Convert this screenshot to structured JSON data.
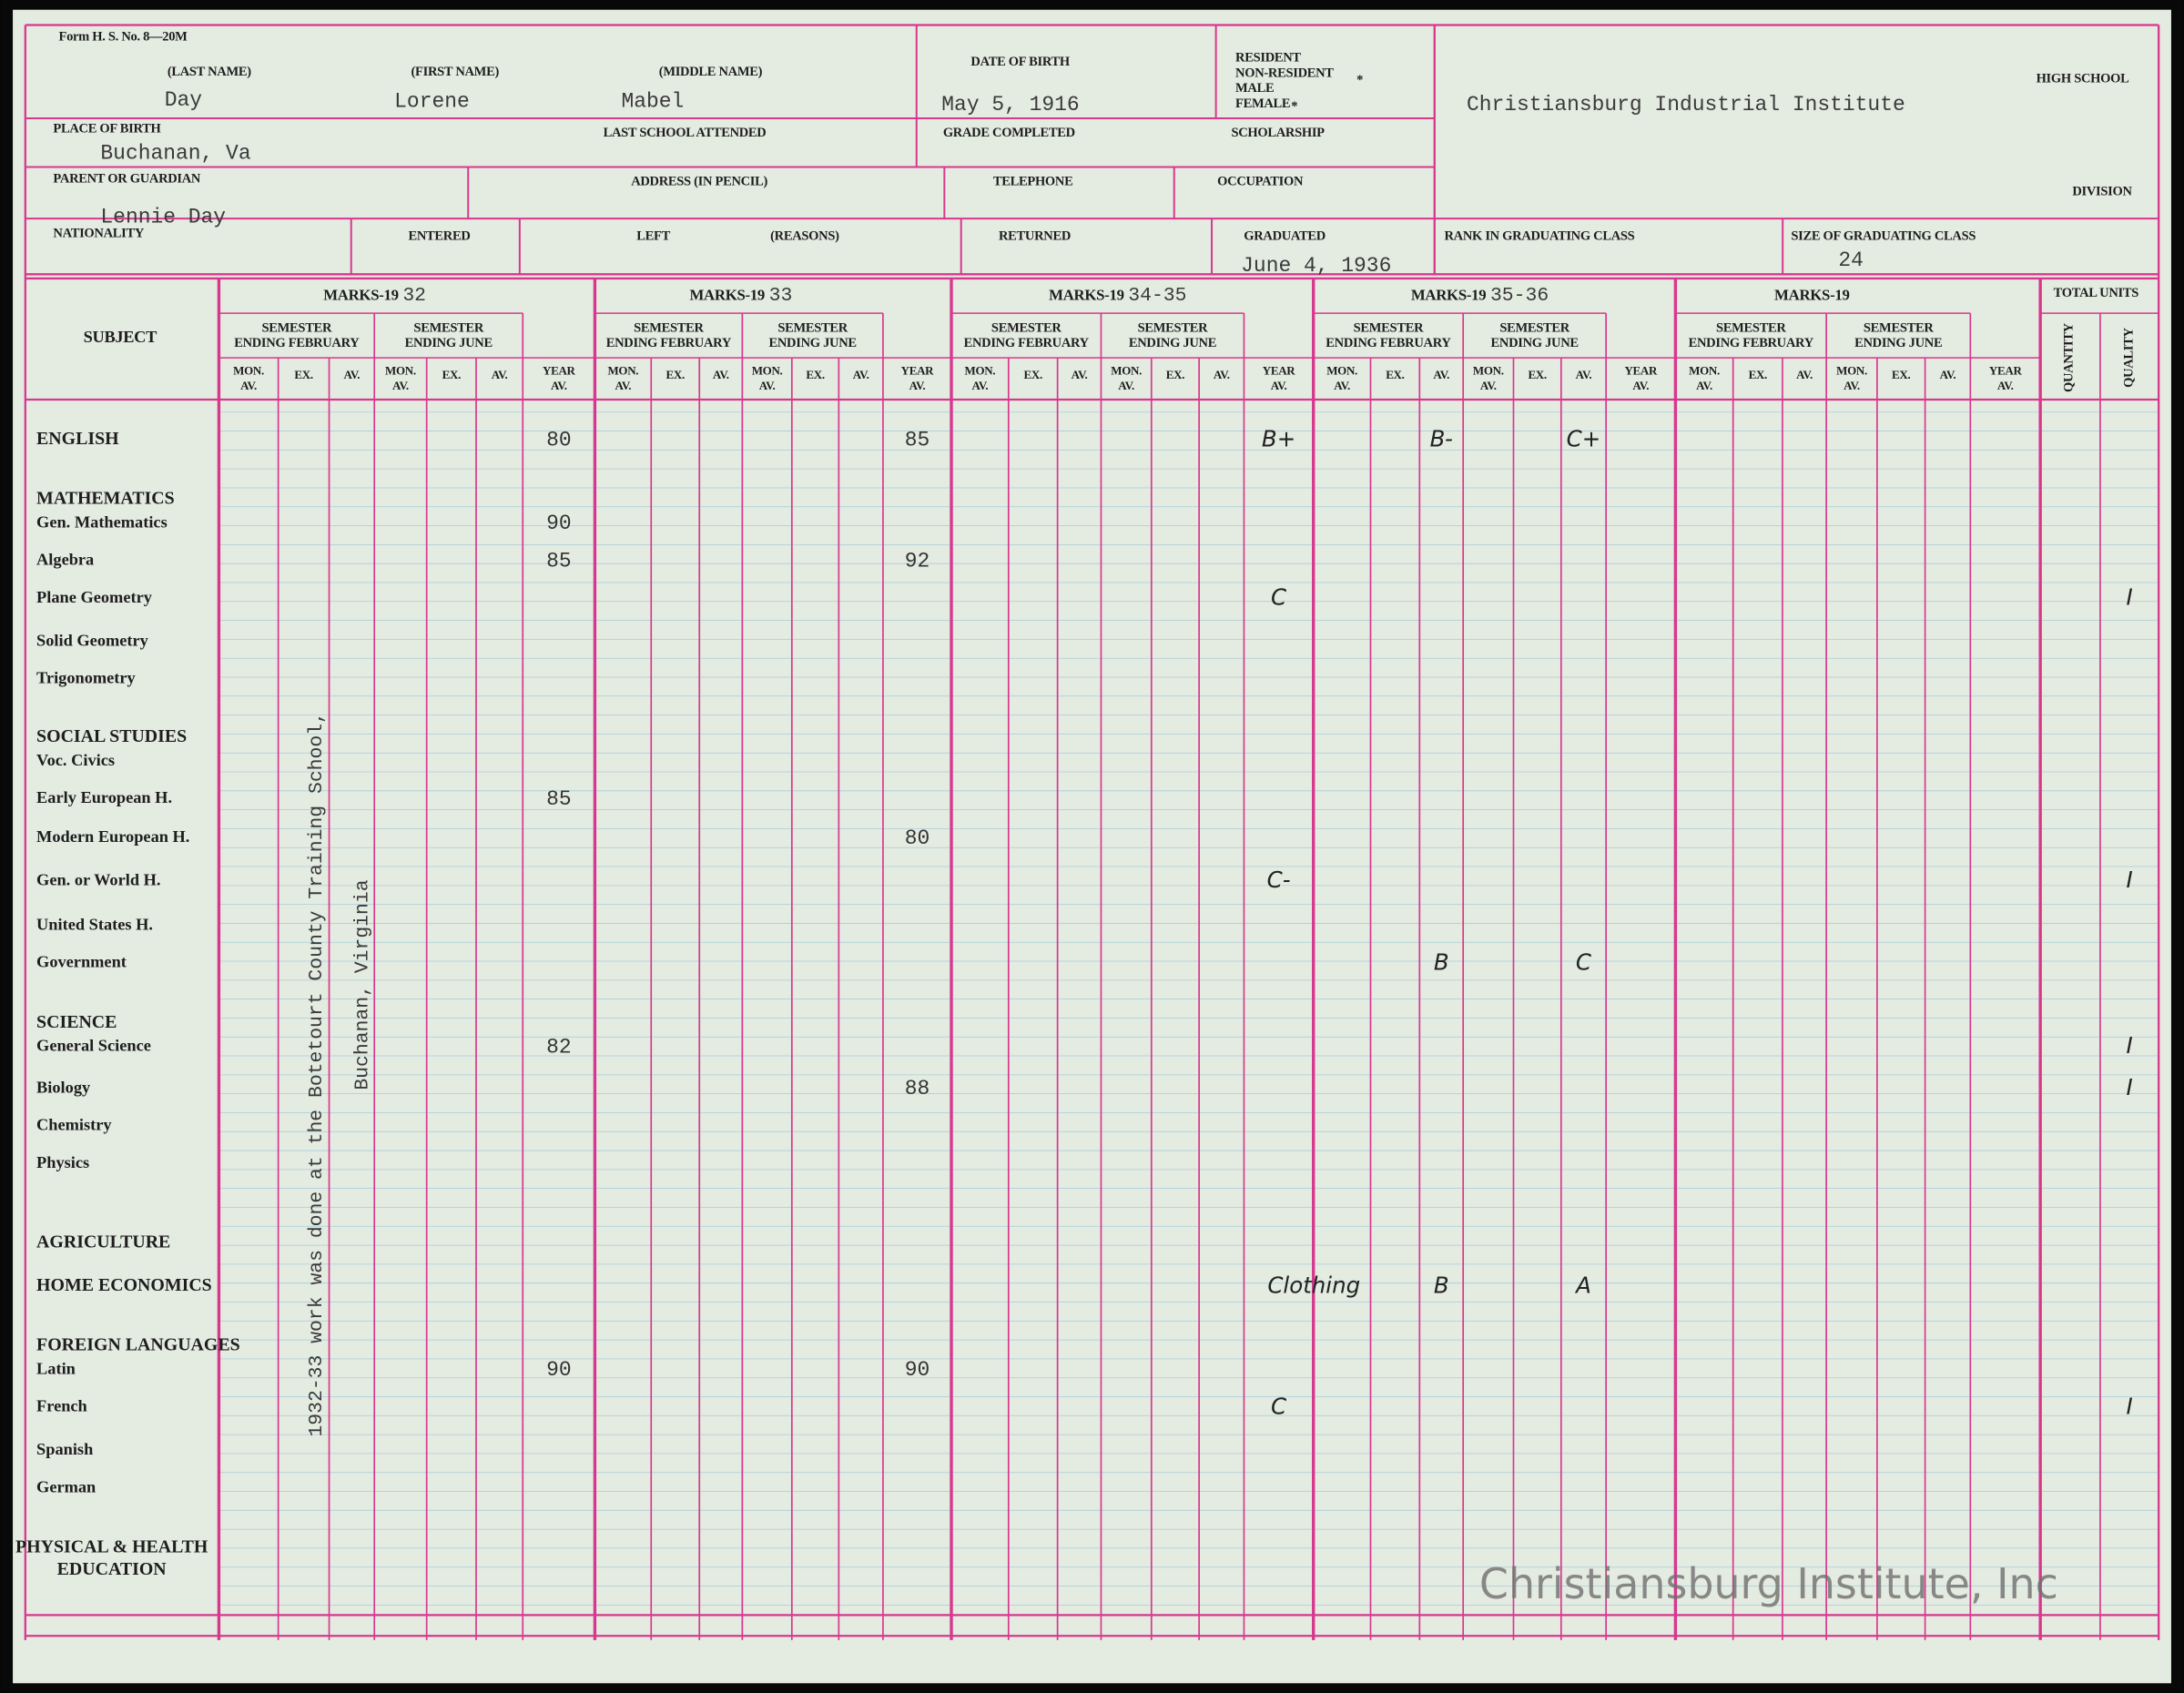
{
  "header": {
    "form_number": "Form H. S. No. 8—20M",
    "last_name": {
      "label": "(LAST NAME)",
      "value": "Day"
    },
    "first_name": {
      "label": "(FIRST NAME)",
      "value": "Lorene"
    },
    "middle_name": {
      "label": "(MIDDLE NAME)",
      "value": "Mabel"
    },
    "date_of_birth": {
      "label": "DATE OF BIRTH",
      "value": "May 5, 1916"
    },
    "status": [
      "RESIDENT",
      "NON-RESIDENT",
      "MALE",
      "FEMALE"
    ],
    "status_marks": [
      "*",
      "*"
    ],
    "high_school": {
      "label": "HIGH SCHOOL",
      "value": "Christiansburg Industrial Institute"
    },
    "place_of_birth": {
      "label": "PLACE OF BIRTH",
      "value": "Buchanan, Va"
    },
    "last_school": {
      "label": "LAST SCHOOL ATTENDED"
    },
    "grade_completed": {
      "label": "GRADE COMPLETED"
    },
    "scholarship": {
      "label": "SCHOLARSHIP"
    },
    "parent": {
      "label": "PARENT OR GUARDIAN",
      "value": "Lennie Day"
    },
    "address": {
      "label": "ADDRESS (IN PENCIL)"
    },
    "telephone": {
      "label": "TELEPHONE"
    },
    "occupation": {
      "label": "OCCUPATION"
    },
    "division": {
      "label": "DIVISION"
    },
    "nationality": {
      "label": "NATIONALITY"
    },
    "entered": {
      "label": "ENTERED"
    },
    "left": {
      "label": "LEFT"
    },
    "reasons": {
      "label": "(REASONS)"
    },
    "returned": {
      "label": "RETURNED"
    },
    "graduated": {
      "label": "GRADUATED",
      "value": "June 4, 1936"
    },
    "rank": {
      "label": "RANK IN GRADUATING CLASS"
    },
    "class_size": {
      "label": "SIZE OF GRADUATING CLASS",
      "value": "24"
    }
  },
  "grid": {
    "subject_label": "SUBJECT",
    "marks_label": "MARKS-19",
    "years": [
      "32",
      "33",
      "34-35",
      "35-36",
      null
    ],
    "semester_labels": [
      [
        "SEMESTER",
        "ENDING FEBRUARY"
      ],
      [
        "SEMESTER",
        "ENDING JUNE"
      ]
    ],
    "column_labels": [
      [
        "MON.",
        "AV."
      ],
      [
        "EX."
      ],
      [
        "AV."
      ]
    ],
    "year_label": [
      "YEAR",
      "AV."
    ],
    "totals_label": "TOTAL UNITS",
    "totals_columns": [
      "QUANTITY",
      "QUALITY"
    ],
    "rows": [
      {
        "subject": "ENGLISH",
        "marks": [
          {
            "block": "32",
            "column": "YEAR AV.",
            "text": "80"
          },
          {
            "block": "33",
            "column": "YEAR AV.",
            "text": "85"
          },
          {
            "block": "34-35",
            "column": "YEAR AV.",
            "text": "B+"
          },
          {
            "block": "35-36",
            "semester": "ENDING FEBRUARY",
            "column": "AV.",
            "text": "B-"
          },
          {
            "block": "35-36",
            "semester": "ENDING JUNE",
            "column": "AV.",
            "text": "C+"
          }
        ]
      },
      {
        "subject": "MATHEMATICS"
      },
      {
        "subject": "Gen. Mathematics",
        "marks": [
          {
            "block": "32",
            "column": "YEAR AV.",
            "text": "90"
          }
        ]
      },
      {
        "subject": "Algebra",
        "marks": [
          {
            "block": "32",
            "column": "YEAR AV.",
            "text": "85"
          },
          {
            "block": "33",
            "column": "YEAR AV.",
            "text": "92"
          }
        ]
      },
      {
        "subject": "Plane Geometry",
        "marks": [
          {
            "block": "34-35",
            "column": "YEAR AV.",
            "text": "C"
          },
          {
            "block": "TOTAL UNITS",
            "column": "QUALITY",
            "text": "I"
          }
        ]
      },
      {
        "subject": "Solid Geometry"
      },
      {
        "subject": "Trigonometry"
      },
      {
        "subject": "SOCIAL STUDIES"
      },
      {
        "subject": "Voc. Civics"
      },
      {
        "subject": "Early European H.",
        "marks": [
          {
            "block": "32",
            "column": "YEAR AV.",
            "text": "85"
          }
        ]
      },
      {
        "subject": "Modern European H.",
        "marks": [
          {
            "block": "33",
            "column": "YEAR AV.",
            "text": "80"
          }
        ]
      },
      {
        "subject": "Gen. or World H.",
        "marks": [
          {
            "block": "34-35",
            "column": "YEAR AV.",
            "text": "C-"
          },
          {
            "block": "TOTAL UNITS",
            "column": "QUALITY",
            "text": "I"
          }
        ]
      },
      {
        "subject": "United States H."
      },
      {
        "subject": "Government",
        "marks": [
          {
            "block": "35-36",
            "semester": "ENDING FEBRUARY",
            "column": "AV.",
            "text": "B"
          },
          {
            "block": "35-36",
            "semester": "ENDING JUNE",
            "column": "AV.",
            "text": "C"
          }
        ]
      },
      {
        "subject": "SCIENCE"
      },
      {
        "subject": "General Science",
        "marks": [
          {
            "block": "32",
            "column": "YEAR AV.",
            "text": "82"
          },
          {
            "block": "TOTAL UNITS",
            "column": "QUALITY",
            "text": "I"
          }
        ]
      },
      {
        "subject": "Biology",
        "marks": [
          {
            "block": "33",
            "column": "YEAR AV.",
            "text": "88"
          },
          {
            "block": "TOTAL UNITS",
            "column": "QUALITY",
            "text": "I"
          }
        ]
      },
      {
        "subject": "Chemistry"
      },
      {
        "subject": "Physics"
      },
      {
        "subject": "AGRICULTURE"
      },
      {
        "subject": "HOME ECONOMICS",
        "marks": [
          {
            "block": "34-35",
            "column": "YEAR AV.",
            "text": "Clothing"
          },
          {
            "block": "35-36",
            "semester": "ENDING FEBRUARY",
            "column": "AV.",
            "text": "B"
          },
          {
            "block": "35-36",
            "semester": "ENDING JUNE",
            "column": "AV.",
            "text": "A"
          }
        ]
      },
      {
        "subject": "FOREIGN LANGUAGES"
      },
      {
        "subject": "Latin",
        "marks": [
          {
            "block": "32",
            "column": "YEAR AV.",
            "text": "90"
          },
          {
            "block": "33",
            "column": "YEAR AV.",
            "text": "90"
          }
        ]
      },
      {
        "subject": "French",
        "marks": [
          {
            "block": "34-35",
            "column": "YEAR AV.",
            "text": "C"
          },
          {
            "block": "TOTAL UNITS",
            "column": "QUALITY",
            "text": "I"
          }
        ]
      },
      {
        "subject": "Spanish"
      },
      {
        "subject": "German"
      },
      {
        "subject": "PHYSICAL & HEALTH"
      },
      {
        "subject": "EDUCATION"
      }
    ]
  },
  "annotation": [
    "1932-33 work was done at the Botetourt County Training School,",
    "Buchanan, Virginia"
  ],
  "watermark": "Christiansburg Institute, Inc"
}
